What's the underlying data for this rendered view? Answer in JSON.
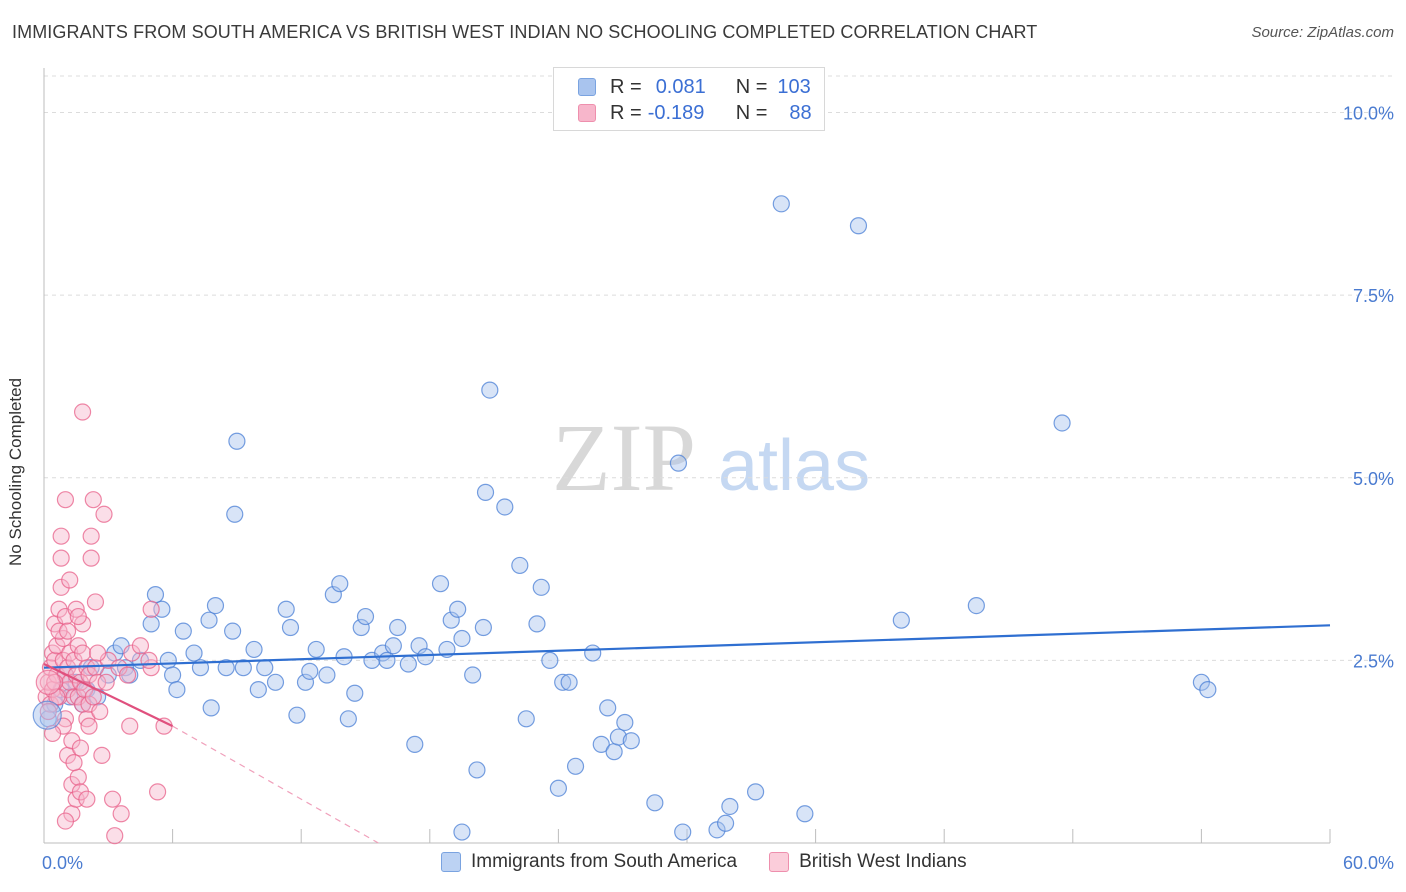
{
  "title": "IMMIGRANTS FROM SOUTH AMERICA VS BRITISH WEST INDIAN NO SCHOOLING COMPLETED CORRELATION CHART",
  "source": "Source: ZipAtlas.com",
  "watermark_zip": "ZIP",
  "watermark_atlas": "atlas",
  "legend": {
    "rows": [
      {
        "r_label": "R =",
        "r_value": "0.081",
        "n_label": "N =",
        "n_value": "103",
        "color": "#a9c4ee"
      },
      {
        "r_label": "R =",
        "r_value": "-0.189",
        "n_label": "N =",
        "n_value": "88",
        "color": "#f7b6cb"
      }
    ]
  },
  "bottom_legend": {
    "series1": "Immigrants from South America",
    "series2": "British West Indians"
  },
  "chart_data": {
    "type": "scatter",
    "title": "IMMIGRANTS FROM SOUTH AMERICA VS BRITISH WEST INDIAN NO SCHOOLING COMPLETED CORRELATION CHART",
    "xlabel": "",
    "ylabel": "No Schooling Completed",
    "xlim": [
      0,
      60
    ],
    "ylim": [
      0,
      10.5
    ],
    "x_tick_labels": [
      "0.0%",
      "60.0%"
    ],
    "y_ticks": [
      2.5,
      5.0,
      7.5,
      10.0
    ],
    "y_tick_labels": [
      "2.5%",
      "5.0%",
      "7.5%",
      "10.0%"
    ],
    "series": [
      {
        "name": "Immigrants from South America",
        "color": "#4a7fd6",
        "fill": "#a9c4ee",
        "trend": {
          "x": [
            0,
            60
          ],
          "y": [
            2.4,
            2.98
          ]
        },
        "points": [
          [
            0.2,
            1.7
          ],
          [
            0.5,
            1.9
          ],
          [
            0.8,
            2.1
          ],
          [
            1.0,
            2.3
          ],
          [
            1.2,
            2.0
          ],
          [
            1.5,
            2.2
          ],
          [
            1.8,
            1.9
          ],
          [
            2.0,
            2.1
          ],
          [
            2.2,
            2.4
          ],
          [
            2.5,
            2.0
          ],
          [
            3.0,
            2.3
          ],
          [
            3.3,
            2.6
          ],
          [
            3.6,
            2.7
          ],
          [
            3.8,
            2.4
          ],
          [
            4.0,
            2.3
          ],
          [
            4.5,
            2.5
          ],
          [
            5.0,
            3.0
          ],
          [
            5.2,
            3.4
          ],
          [
            5.5,
            3.2
          ],
          [
            5.8,
            2.5
          ],
          [
            6.0,
            2.3
          ],
          [
            6.2,
            2.1
          ],
          [
            6.5,
            2.9
          ],
          [
            7.0,
            2.6
          ],
          [
            7.3,
            2.4
          ],
          [
            7.7,
            3.05
          ],
          [
            7.8,
            1.85
          ],
          [
            8.0,
            3.25
          ],
          [
            8.5,
            2.4
          ],
          [
            8.8,
            2.9
          ],
          [
            9.0,
            5.5
          ],
          [
            9.3,
            2.4
          ],
          [
            9.8,
            2.65
          ],
          [
            10.0,
            2.1
          ],
          [
            10.3,
            2.4
          ],
          [
            10.8,
            2.2
          ],
          [
            11.3,
            3.2
          ],
          [
            11.5,
            2.95
          ],
          [
            11.8,
            1.75
          ],
          [
            12.2,
            2.2
          ],
          [
            12.4,
            2.35
          ],
          [
            12.7,
            2.65
          ],
          [
            13.2,
            2.3
          ],
          [
            13.5,
            3.4
          ],
          [
            13.8,
            3.55
          ],
          [
            14.0,
            2.55
          ],
          [
            14.2,
            1.7
          ],
          [
            14.5,
            2.05
          ],
          [
            14.8,
            2.95
          ],
          [
            15.0,
            3.1
          ],
          [
            15.3,
            2.5
          ],
          [
            15.8,
            2.6
          ],
          [
            16.0,
            2.5
          ],
          [
            16.3,
            2.7
          ],
          [
            16.5,
            2.95
          ],
          [
            17.0,
            2.45
          ],
          [
            17.5,
            2.7
          ],
          [
            17.8,
            2.55
          ],
          [
            17.3,
            1.35
          ],
          [
            18.5,
            3.55
          ],
          [
            18.8,
            2.65
          ],
          [
            19.0,
            3.05
          ],
          [
            19.3,
            3.2
          ],
          [
            19.5,
            2.8
          ],
          [
            20.0,
            2.3
          ],
          [
            20.2,
            1.0
          ],
          [
            20.5,
            2.95
          ],
          [
            20.8,
            6.2
          ],
          [
            20.6,
            4.8
          ],
          [
            21.5,
            4.6
          ],
          [
            22.2,
            3.8
          ],
          [
            22.5,
            1.7
          ],
          [
            23.0,
            3.0
          ],
          [
            23.2,
            3.5
          ],
          [
            23.6,
            2.5
          ],
          [
            24.0,
            0.75
          ],
          [
            24.2,
            2.2
          ],
          [
            24.5,
            2.2
          ],
          [
            24.8,
            1.05
          ],
          [
            25.6,
            2.6
          ],
          [
            26.0,
            1.35
          ],
          [
            26.3,
            1.85
          ],
          [
            26.6,
            1.25
          ],
          [
            26.8,
            1.45
          ],
          [
            27.1,
            1.65
          ],
          [
            27.4,
            1.4
          ],
          [
            28.5,
            0.55
          ],
          [
            29.6,
            5.2
          ],
          [
            29.8,
            0.15
          ],
          [
            31.4,
            0.18
          ],
          [
            31.8,
            0.27
          ],
          [
            32.0,
            0.5
          ],
          [
            33.2,
            0.7
          ],
          [
            34.4,
            8.75
          ],
          [
            35.5,
            0.4
          ],
          [
            38.0,
            8.45
          ],
          [
            40.0,
            3.05
          ],
          [
            43.5,
            3.25
          ],
          [
            47.5,
            5.75
          ],
          [
            54.0,
            2.2
          ],
          [
            54.3,
            2.1
          ],
          [
            8.9,
            4.5
          ],
          [
            19.5,
            0.15
          ]
        ]
      },
      {
        "name": "British West Indians",
        "color": "#e8608a",
        "fill": "#f7b6cb",
        "trend": {
          "x": [
            0,
            6.0
          ],
          "y": [
            2.45,
            1.6
          ]
        },
        "trend_extension": {
          "x": [
            6.0,
            15.6
          ],
          "y": [
            1.6,
            0.0
          ]
        },
        "points": [
          [
            0.1,
            2.0
          ],
          [
            0.2,
            2.2
          ],
          [
            0.3,
            2.4
          ],
          [
            0.3,
            1.9
          ],
          [
            0.4,
            2.6
          ],
          [
            0.4,
            2.1
          ],
          [
            0.5,
            3.0
          ],
          [
            0.5,
            2.5
          ],
          [
            0.6,
            2.7
          ],
          [
            0.6,
            2.3
          ],
          [
            0.7,
            3.2
          ],
          [
            0.7,
            2.0
          ],
          [
            0.8,
            3.5
          ],
          [
            0.8,
            4.2
          ],
          [
            0.8,
            3.9
          ],
          [
            0.9,
            2.5
          ],
          [
            0.9,
            2.8
          ],
          [
            1.0,
            2.3
          ],
          [
            1.0,
            3.1
          ],
          [
            1.0,
            4.7
          ],
          [
            1.0,
            1.7
          ],
          [
            1.1,
            2.1
          ],
          [
            1.1,
            2.4
          ],
          [
            1.1,
            1.2
          ],
          [
            1.2,
            2.6
          ],
          [
            1.2,
            2.2
          ],
          [
            1.3,
            1.4
          ],
          [
            1.3,
            0.8
          ],
          [
            1.3,
            0.4
          ],
          [
            1.4,
            2.0
          ],
          [
            1.4,
            2.5
          ],
          [
            1.5,
            3.2
          ],
          [
            1.5,
            2.3
          ],
          [
            1.5,
            0.6
          ],
          [
            1.6,
            2.0
          ],
          [
            1.6,
            2.7
          ],
          [
            1.6,
            0.9
          ],
          [
            1.7,
            2.2
          ],
          [
            1.7,
            1.3
          ],
          [
            1.7,
            0.7
          ],
          [
            1.8,
            3.0
          ],
          [
            1.8,
            5.9
          ],
          [
            1.8,
            1.9
          ],
          [
            1.9,
            2.1
          ],
          [
            2.0,
            2.4
          ],
          [
            2.0,
            1.7
          ],
          [
            2.0,
            0.6
          ],
          [
            2.1,
            2.3
          ],
          [
            2.1,
            1.9
          ],
          [
            2.2,
            3.9
          ],
          [
            2.2,
            4.2
          ],
          [
            2.3,
            4.7
          ],
          [
            2.3,
            2.0
          ],
          [
            2.4,
            3.3
          ],
          [
            2.4,
            2.4
          ],
          [
            2.5,
            2.2
          ],
          [
            2.6,
            1.8
          ],
          [
            2.7,
            1.2
          ],
          [
            2.8,
            4.5
          ],
          [
            3.0,
            2.5
          ],
          [
            3.2,
            0.6
          ],
          [
            3.3,
            0.1
          ],
          [
            3.5,
            2.4
          ],
          [
            3.6,
            0.4
          ],
          [
            4.0,
            1.6
          ],
          [
            4.1,
            2.6
          ],
          [
            4.5,
            2.7
          ],
          [
            5.0,
            3.2
          ],
          [
            5.0,
            2.4
          ],
          [
            5.3,
            0.7
          ],
          [
            5.6,
            1.6
          ],
          [
            0.2,
            1.8
          ],
          [
            0.5,
            2.2
          ],
          [
            0.7,
            2.9
          ],
          [
            0.9,
            1.6
          ],
          [
            1.1,
            2.9
          ],
          [
            1.2,
            3.6
          ],
          [
            1.4,
            1.1
          ],
          [
            1.8,
            2.6
          ],
          [
            2.5,
            2.6
          ],
          [
            0.4,
            1.5
          ],
          [
            1.6,
            3.1
          ],
          [
            2.9,
            2.2
          ],
          [
            0.6,
            2.0
          ],
          [
            1.0,
            0.3
          ],
          [
            2.1,
            1.6
          ],
          [
            3.9,
            2.3
          ],
          [
            4.9,
            2.5
          ]
        ]
      }
    ]
  }
}
